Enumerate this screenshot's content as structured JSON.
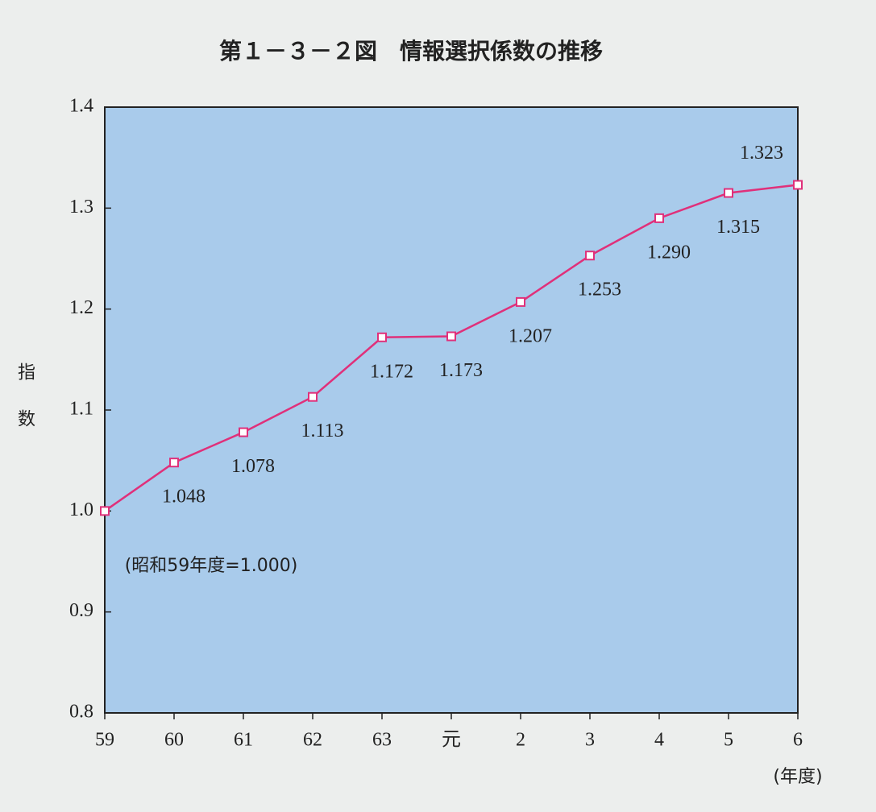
{
  "chart_data": {
    "type": "line",
    "title": "第１－３－２図　情報選択係数の推移",
    "y_label": "指数",
    "x_label": "(年度)",
    "annotation": "(昭和59年度=1.000)",
    "categories": [
      "59",
      "60",
      "61",
      "62",
      "63",
      "元",
      "2",
      "3",
      "4",
      "5",
      "6"
    ],
    "values": [
      1.0,
      1.048,
      1.078,
      1.113,
      1.172,
      1.173,
      1.207,
      1.253,
      1.29,
      1.315,
      1.323
    ],
    "value_labels": [
      null,
      "1.048",
      "1.078",
      "1.113",
      "1.172",
      "1.173",
      "1.207",
      "1.253",
      "1.290",
      "1.315",
      "1.323"
    ],
    "color": "#e0307a",
    "ylim": [
      0.8,
      1.4
    ],
    "yticks": [
      0.8,
      0.9,
      {
        "value": 1.0,
        "label": "1.0"
      },
      1.1,
      1.2,
      1.3,
      1.4
    ]
  }
}
